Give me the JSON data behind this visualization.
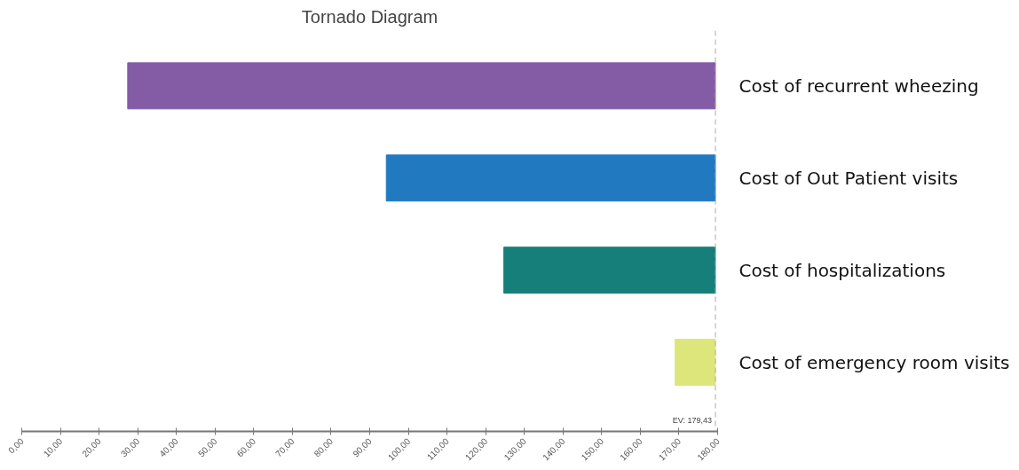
{
  "chart_data": {
    "type": "bar",
    "orientation": "horizontal",
    "title": "Tornado Diagram",
    "categories": [
      "Cost of recurrent wheezing",
      "Cost of Out Patient visits",
      "Cost of hospitalizations",
      "Cost of emergency room visits"
    ],
    "base": [
      27.4,
      94.3,
      124.7,
      169
    ],
    "values": [
      152.0,
      85.1,
      54.7,
      10.4
    ],
    "colors": [
      "#845ca6",
      "#2179c0",
      "#167f7a",
      "#dde67a"
    ],
    "xlim": [
      0,
      180
    ],
    "xticks": [
      {
        "value": 0,
        "label": "0,00"
      },
      {
        "value": 10,
        "label": "10,00"
      },
      {
        "value": 20,
        "label": "20,00"
      },
      {
        "value": 30,
        "label": "30,00"
      },
      {
        "value": 40,
        "label": "40,00"
      },
      {
        "value": 50,
        "label": "50,00"
      },
      {
        "value": 60,
        "label": "60,00"
      },
      {
        "value": 70,
        "label": "70,00"
      },
      {
        "value": 80,
        "label": "80,00"
      },
      {
        "value": 90,
        "label": "90,00"
      },
      {
        "value": 100,
        "label": "100,00"
      },
      {
        "value": 110,
        "label": "110,00"
      },
      {
        "value": 120,
        "label": "120,00"
      },
      {
        "value": 130,
        "label": "130,00"
      },
      {
        "value": 140,
        "label": "140,00"
      },
      {
        "value": 150,
        "label": "150,00"
      },
      {
        "value": 160,
        "label": "160,00"
      },
      {
        "value": 170,
        "label": "170,00"
      },
      {
        "value": 180,
        "label": "180,00"
      }
    ],
    "ref_lines": [
      {
        "axis": "x",
        "value": 179.43,
        "label": "EV: 179,43",
        "color": "#aaaaaa",
        "line_style": "dashed"
      }
    ],
    "grid": false
  }
}
